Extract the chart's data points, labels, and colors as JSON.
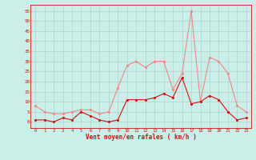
{
  "hours": [
    0,
    1,
    2,
    3,
    4,
    5,
    6,
    7,
    8,
    9,
    10,
    11,
    12,
    13,
    14,
    15,
    16,
    17,
    18,
    19,
    20,
    21,
    22,
    23
  ],
  "wind_avg": [
    1,
    1,
    0,
    2,
    1,
    5,
    3,
    1,
    0,
    1,
    11,
    11,
    11,
    12,
    14,
    12,
    22,
    9,
    10,
    13,
    11,
    5,
    1,
    2
  ],
  "wind_gust": [
    8,
    5,
    4,
    4,
    5,
    6,
    6,
    4,
    5,
    17,
    28,
    30,
    27,
    30,
    30,
    16,
    24,
    55,
    10,
    32,
    30,
    24,
    8,
    5
  ],
  "bg_color": "#cceee8",
  "grid_color": "#aad4ce",
  "line_avg_color": "#cc1111",
  "line_gust_color": "#ee8888",
  "xlabel": "Vent moyen/en rafales ( km/h )",
  "yticks": [
    0,
    5,
    10,
    15,
    20,
    25,
    30,
    35,
    40,
    45,
    50,
    55
  ],
  "ylim": [
    -3,
    58
  ],
  "xlim": [
    -0.5,
    23.5
  ]
}
